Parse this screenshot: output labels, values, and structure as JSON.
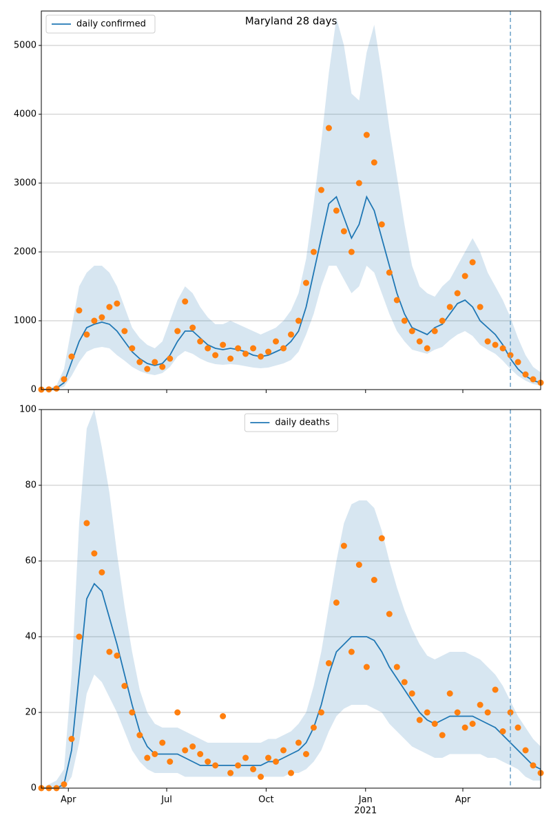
{
  "chart_data": [
    {
      "type": "line",
      "title": "Maryland 28 days",
      "x": [
        0,
        7,
        14,
        21,
        28,
        35,
        42,
        49,
        56,
        63,
        70,
        77,
        84,
        91,
        98,
        105,
        112,
        119,
        126,
        133,
        140,
        147,
        154,
        161,
        168,
        175,
        182,
        189,
        196,
        203,
        210,
        217,
        224,
        231,
        238,
        245,
        252,
        259,
        266,
        273,
        280,
        287,
        294,
        301,
        308,
        315,
        322,
        329,
        336,
        343,
        350,
        357,
        364,
        371,
        378,
        385,
        392,
        399,
        406,
        413,
        420,
        427,
        434,
        441,
        448,
        455,
        462
      ],
      "xlim": [
        0,
        462
      ],
      "xticks": [
        {
          "value": 25,
          "label": "Apr"
        },
        {
          "value": 116,
          "label": "Jul"
        },
        {
          "value": 208,
          "label": "Oct"
        },
        {
          "value": 300,
          "label": "Jan"
        },
        {
          "value": 390,
          "label": "Apr"
        }
      ],
      "show_xtick_labels": false,
      "ylim": [
        0,
        5500
      ],
      "yticks": [
        0,
        1000,
        2000,
        3000,
        4000,
        5000
      ],
      "grid": true,
      "legend": "upper left",
      "vlines": [
        434
      ],
      "series": [
        {
          "name": "daily confirmed",
          "color": "#1f77b4",
          "values": [
            0,
            5,
            20,
            100,
            400,
            700,
            900,
            950,
            980,
            950,
            850,
            700,
            550,
            450,
            380,
            350,
            380,
            500,
            700,
            850,
            850,
            750,
            650,
            600,
            580,
            600,
            580,
            550,
            500,
            480,
            500,
            550,
            600,
            700,
            850,
            1200,
            1700,
            2200,
            2700,
            2800,
            2500,
            2200,
            2400,
            2800,
            2600,
            2200,
            1800,
            1400,
            1100,
            900,
            850,
            800,
            900,
            950,
            1100,
            1250,
            1300,
            1200,
            1000,
            900,
            800,
            650,
            450,
            300,
            200,
            130,
            100
          ]
        }
      ],
      "points": {
        "color": "#ff7f0e",
        "values": [
          0,
          3,
          15,
          150,
          480,
          1150,
          800,
          1000,
          1050,
          1200,
          1250,
          850,
          600,
          400,
          300,
          400,
          330,
          450,
          850,
          1280,
          900,
          700,
          600,
          500,
          650,
          450,
          600,
          520,
          600,
          480,
          550,
          700,
          600,
          800,
          1000,
          1550,
          2000,
          2900,
          3800,
          2600,
          2300,
          2000,
          3000,
          3700,
          3300,
          2400,
          1700,
          1300,
          1000,
          850,
          700,
          600,
          850,
          1000,
          1200,
          1400,
          1650,
          1850,
          1200,
          700,
          650,
          600,
          500,
          400,
          220,
          150,
          100
        ]
      },
      "band": {
        "color": "#1f77b4",
        "upper": [
          0,
          20,
          60,
          300,
          900,
          1500,
          1700,
          1800,
          1800,
          1700,
          1500,
          1200,
          900,
          750,
          650,
          600,
          700,
          1000,
          1300,
          1500,
          1400,
          1200,
          1050,
          950,
          950,
          1000,
          950,
          900,
          850,
          800,
          850,
          900,
          1000,
          1150,
          1400,
          1900,
          2700,
          3600,
          4600,
          5400,
          5000,
          4300,
          4200,
          4900,
          5300,
          4600,
          3800,
          3100,
          2400,
          1800,
          1500,
          1400,
          1350,
          1500,
          1600,
          1800,
          2000,
          2200,
          2000,
          1700,
          1500,
          1300,
          1050,
          750,
          500,
          330,
          250
        ],
        "lower": [
          0,
          0,
          5,
          40,
          200,
          400,
          550,
          600,
          620,
          600,
          500,
          420,
          330,
          270,
          230,
          210,
          240,
          330,
          480,
          560,
          520,
          450,
          400,
          370,
          360,
          370,
          360,
          340,
          320,
          310,
          320,
          350,
          380,
          430,
          550,
          800,
          1100,
          1500,
          1800,
          1800,
          1600,
          1400,
          1500,
          1800,
          1700,
          1400,
          1100,
          850,
          700,
          580,
          550,
          520,
          580,
          620,
          720,
          800,
          850,
          780,
          650,
          580,
          520,
          420,
          300,
          200,
          130,
          80,
          60
        ]
      }
    },
    {
      "type": "line",
      "x": [
        0,
        7,
        14,
        21,
        28,
        35,
        42,
        49,
        56,
        63,
        70,
        77,
        84,
        91,
        98,
        105,
        112,
        119,
        126,
        133,
        140,
        147,
        154,
        161,
        168,
        175,
        182,
        189,
        196,
        203,
        210,
        217,
        224,
        231,
        238,
        245,
        252,
        259,
        266,
        273,
        280,
        287,
        294,
        301,
        308,
        315,
        322,
        329,
        336,
        343,
        350,
        357,
        364,
        371,
        378,
        385,
        392,
        399,
        406,
        413,
        420,
        427,
        434,
        441,
        448,
        455,
        462
      ],
      "xlim": [
        0,
        462
      ],
      "xticks": [
        {
          "value": 25,
          "label": "Apr"
        },
        {
          "value": 116,
          "label": "Jul"
        },
        {
          "value": 208,
          "label": "Oct"
        },
        {
          "value": 300,
          "label": "Jan"
        },
        {
          "value": 390,
          "label": "Apr"
        }
      ],
      "x_sublabel": {
        "value": 300,
        "label": "2021"
      },
      "show_xtick_labels": true,
      "ylim": [
        0,
        100
      ],
      "yticks": [
        0,
        20,
        40,
        60,
        80,
        100
      ],
      "grid": true,
      "legend": "upper center",
      "vlines": [
        434
      ],
      "series": [
        {
          "name": "daily deaths",
          "color": "#1f77b4",
          "values": [
            0,
            0,
            0,
            1,
            10,
            30,
            50,
            54,
            52,
            45,
            38,
            30,
            22,
            15,
            11,
            9,
            9,
            9,
            9,
            8,
            7,
            6,
            6,
            6,
            6,
            6,
            6,
            6,
            6,
            6,
            7,
            7,
            8,
            9,
            10,
            12,
            16,
            22,
            30,
            36,
            38,
            40,
            40,
            40,
            39,
            36,
            32,
            29,
            26,
            23,
            20,
            18,
            17,
            18,
            19,
            19,
            19,
            19,
            18,
            17,
            16,
            14,
            12,
            10,
            8,
            6,
            5
          ]
        }
      ],
      "points": {
        "color": "#ff7f0e",
        "values": [
          0,
          0,
          0,
          1,
          13,
          40,
          70,
          62,
          57,
          36,
          35,
          27,
          20,
          14,
          8,
          9,
          12,
          7,
          20,
          10,
          11,
          9,
          7,
          6,
          19,
          4,
          6,
          8,
          5,
          3,
          8,
          7,
          10,
          4,
          12,
          9,
          16,
          20,
          33,
          49,
          64,
          36,
          59,
          32,
          55,
          66,
          46,
          32,
          28,
          25,
          18,
          20,
          17,
          14,
          25,
          20,
          16,
          17,
          22,
          20,
          26,
          15,
          20,
          16,
          10,
          6,
          4
        ]
      },
      "band": {
        "color": "#1f77b4",
        "upper": [
          0,
          1,
          2,
          5,
          30,
          70,
          95,
          100,
          90,
          78,
          62,
          48,
          36,
          26,
          20,
          17,
          16,
          16,
          16,
          15,
          14,
          13,
          12,
          12,
          12,
          12,
          12,
          12,
          12,
          12,
          13,
          13,
          14,
          15,
          17,
          20,
          27,
          36,
          48,
          60,
          70,
          75,
          76,
          76,
          74,
          68,
          60,
          53,
          47,
          42,
          38,
          35,
          34,
          35,
          36,
          36,
          36,
          35,
          34,
          32,
          30,
          27,
          23,
          19,
          16,
          13,
          11
        ],
        "lower": [
          0,
          0,
          0,
          0,
          3,
          12,
          25,
          30,
          28,
          24,
          20,
          15,
          10,
          7,
          5,
          4,
          4,
          4,
          4,
          3,
          3,
          3,
          3,
          3,
          3,
          3,
          3,
          3,
          3,
          3,
          3,
          3,
          3,
          4,
          4,
          5,
          7,
          10,
          15,
          19,
          21,
          22,
          22,
          22,
          21,
          20,
          17,
          15,
          13,
          11,
          10,
          9,
          8,
          8,
          9,
          9,
          9,
          9,
          9,
          8,
          8,
          7,
          6,
          5,
          3,
          2,
          2
        ]
      }
    }
  ]
}
